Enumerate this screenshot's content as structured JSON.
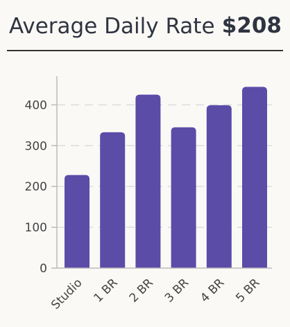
{
  "header": {
    "title": "Average Daily Rate",
    "value": "$208"
  },
  "chart_data": {
    "type": "bar",
    "categories": [
      "Studio",
      "1 BR",
      "2 BR",
      "3 BR",
      "4 BR",
      "5 BR"
    ],
    "values": [
      228,
      333,
      425,
      345,
      399,
      444
    ],
    "ylim": [
      0,
      460
    ],
    "yticks": [
      0,
      100,
      200,
      300,
      400
    ],
    "grid": true,
    "bar_color": "#5b4ca8",
    "grid_color": "#dcdcdc",
    "text_color": "#444444"
  }
}
